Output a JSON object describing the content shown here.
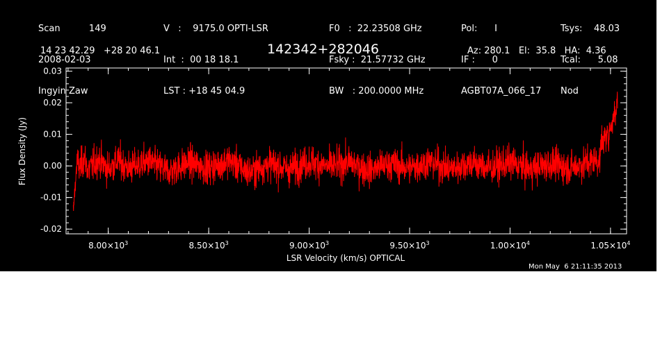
{
  "header": {
    "col1": [
      "Scan          149",
      "2008-02-03",
      "Ingyin Zaw"
    ],
    "col2": [
      "V   :    9175.0 OPTI-LSR",
      "Int  :  00 18 18.1",
      "LST : +18 45 04.9"
    ],
    "col3": [
      "F0   :  22.23508 GHz",
      "Fsky :  21.57732 GHz",
      "BW   : 200.0000 MHz"
    ],
    "col4": [
      "Pol:      I",
      "IF :      0",
      "AGBT07A_066_17"
    ],
    "col5": [
      "Tsys:    48.03",
      "Tcal:      5.08",
      "Nod"
    ],
    "coords": "14 23 42.29   +28 20 46.1",
    "source": "142342+282046",
    "azelha": "Az: 280.1   El:  35.8   HA:  4.36"
  },
  "timestamp": "Mon May  6 21:11:35 2013",
  "chart_data": {
    "type": "line",
    "title": "142342+282046",
    "xlabel": "LSR Velocity (km/s) OPTICAL",
    "ylabel": "Flux Density (Jy)",
    "xlim": [
      7790,
      10580
    ],
    "ylim": [
      -0.0215,
      0.031
    ],
    "x_ticks": [
      8000,
      8500,
      9000,
      9500,
      10000,
      10500
    ],
    "x_tick_labels": [
      {
        "mant": "8.00×10",
        "exp": "3"
      },
      {
        "mant": "8.50×10",
        "exp": "3"
      },
      {
        "mant": "9.00×10",
        "exp": "3"
      },
      {
        "mant": "9.50×10",
        "exp": "3"
      },
      {
        "mant": "1.00×10",
        "exp": "4"
      },
      {
        "mant": "1.05×10",
        "exp": "4"
      }
    ],
    "y_ticks": [
      -0.02,
      -0.01,
      0.0,
      0.01,
      0.02,
      0.03
    ],
    "y_tick_labels": [
      "-0.02",
      "-0.01",
      "0.00",
      "0.01",
      "0.02",
      "0.03"
    ],
    "series": [
      {
        "color": "#ff0000",
        "x_range": [
          7825,
          10535
        ],
        "points": [
          [
            7825,
            -0.014
          ],
          [
            7835,
            -0.008
          ],
          [
            7845,
            0.003
          ],
          [
            7860,
            -0.002
          ],
          [
            7880,
            0.008
          ],
          [
            7900,
            -0.004
          ],
          [
            7950,
            0.006
          ],
          [
            8000,
            -0.003
          ],
          [
            8050,
            0.005
          ],
          [
            8100,
            -0.002
          ],
          [
            8200,
            0.004
          ],
          [
            8300,
            -0.005
          ],
          [
            8400,
            0.003
          ],
          [
            8500,
            -0.002
          ],
          [
            8600,
            0.005
          ],
          [
            8700,
            -0.006
          ],
          [
            8800,
            0.002
          ],
          [
            8900,
            -0.003
          ],
          [
            9000,
            0.004
          ],
          [
            9100,
            -0.001
          ],
          [
            9200,
            0.003
          ],
          [
            9300,
            -0.004
          ],
          [
            9400,
            0.002
          ],
          [
            9500,
            -0.002
          ],
          [
            9600,
            0.004
          ],
          [
            9700,
            -0.003
          ],
          [
            9800,
            0.003
          ],
          [
            9900,
            -0.002
          ],
          [
            10000,
            0.003
          ],
          [
            10100,
            -0.003
          ],
          [
            10200,
            0.002
          ],
          [
            10300,
            -0.002
          ],
          [
            10400,
            0.004
          ],
          [
            10450,
            0.006
          ],
          [
            10480,
            0.009
          ],
          [
            10500,
            0.012
          ],
          [
            10515,
            0.016
          ],
          [
            10525,
            0.018
          ],
          [
            10535,
            0.021
          ]
        ]
      }
    ]
  }
}
